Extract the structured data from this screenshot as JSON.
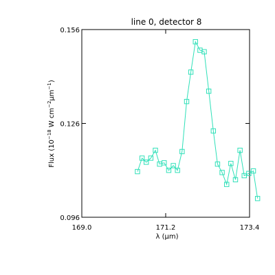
{
  "chart_data": {
    "type": "line",
    "title": "line 0, detector 8",
    "xlabel": "λ (μm)",
    "ylabel": {
      "prefix": "Flux (10",
      "exp1": "−18",
      "mid1": " W cm",
      "exp2": "−2",
      "mid2": "μm",
      "exp3": "−1",
      "suffix": ")"
    },
    "xlim": [
      169.0,
      173.4
    ],
    "ylim": [
      0.096,
      0.156
    ],
    "xticks": [
      {
        "value": 169.0,
        "label": "169.0"
      },
      {
        "value": 171.2,
        "label": "171.2"
      },
      {
        "value": 173.4,
        "label": "173.4"
      }
    ],
    "yticks": [
      {
        "value": 0.096,
        "label": "0.096"
      },
      {
        "value": 0.126,
        "label": "0.126"
      },
      {
        "value": 0.156,
        "label": "0.156"
      }
    ],
    "marker": "open-square",
    "color": "#2ee0b8",
    "series": [
      {
        "x": [
          170.46,
          170.58,
          170.69,
          170.81,
          170.93,
          171.04,
          171.16,
          171.28,
          171.4,
          171.51,
          171.63,
          171.75,
          171.86,
          171.98,
          172.1,
          172.21,
          172.33,
          172.45,
          172.56,
          172.68,
          172.8,
          172.91,
          173.03,
          173.15,
          173.26,
          173.38,
          173.5,
          173.61,
          173.73,
          173.85,
          173.96
        ],
        "y": [
          0.1106,
          0.1149,
          0.1136,
          0.1149,
          0.1174,
          0.113,
          0.1134,
          0.111,
          0.1125,
          0.111,
          0.117,
          0.133,
          0.1424,
          0.1521,
          0.1494,
          0.1489,
          0.1363,
          0.1236,
          0.113,
          0.1103,
          0.1065,
          0.1132,
          0.108,
          0.1174,
          0.1093,
          0.11,
          0.1108,
          0.102,
          null,
          null,
          null
        ]
      }
    ]
  }
}
